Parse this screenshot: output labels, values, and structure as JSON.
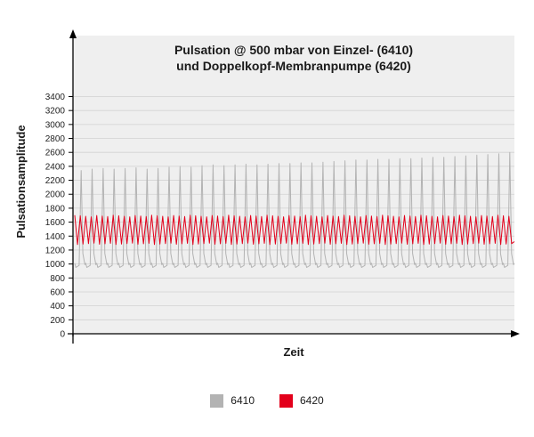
{
  "chart_data": {
    "type": "line",
    "title_line1": "Pulsation @ 500 mbar von Einzel- (6410)",
    "title_line2": "und Doppelkopf-Membranpumpe (6420)",
    "xlabel": "Zeit",
    "ylabel": "Pulsationsamplitude",
    "ylim": [
      0,
      3400
    ],
    "yticks": [
      0,
      200,
      400,
      600,
      800,
      1000,
      1200,
      1400,
      1600,
      1800,
      2000,
      2200,
      2400,
      2600,
      2800,
      3000,
      3200,
      3400
    ],
    "grid": true,
    "legend_position": "bottom",
    "series": [
      {
        "name": "6410",
        "color": "#b3b3b3",
        "cycles": 40,
        "baseline": 950,
        "peaks": [
          2340,
          2360,
          2370,
          2360,
          2370,
          2380,
          2360,
          2370,
          2390,
          2400,
          2390,
          2410,
          2420,
          2410,
          2420,
          2430,
          2420,
          2430,
          2440,
          2440,
          2450,
          2450,
          2460,
          2470,
          2480,
          2490,
          2490,
          2500,
          2500,
          2510,
          2510,
          2520,
          2530,
          2530,
          2540,
          2550,
          2560,
          2570,
          2580,
          2600
        ]
      },
      {
        "name": "6420",
        "color": "#e3001b",
        "cycles": 80,
        "max": 1700,
        "min": 1280
      }
    ]
  }
}
